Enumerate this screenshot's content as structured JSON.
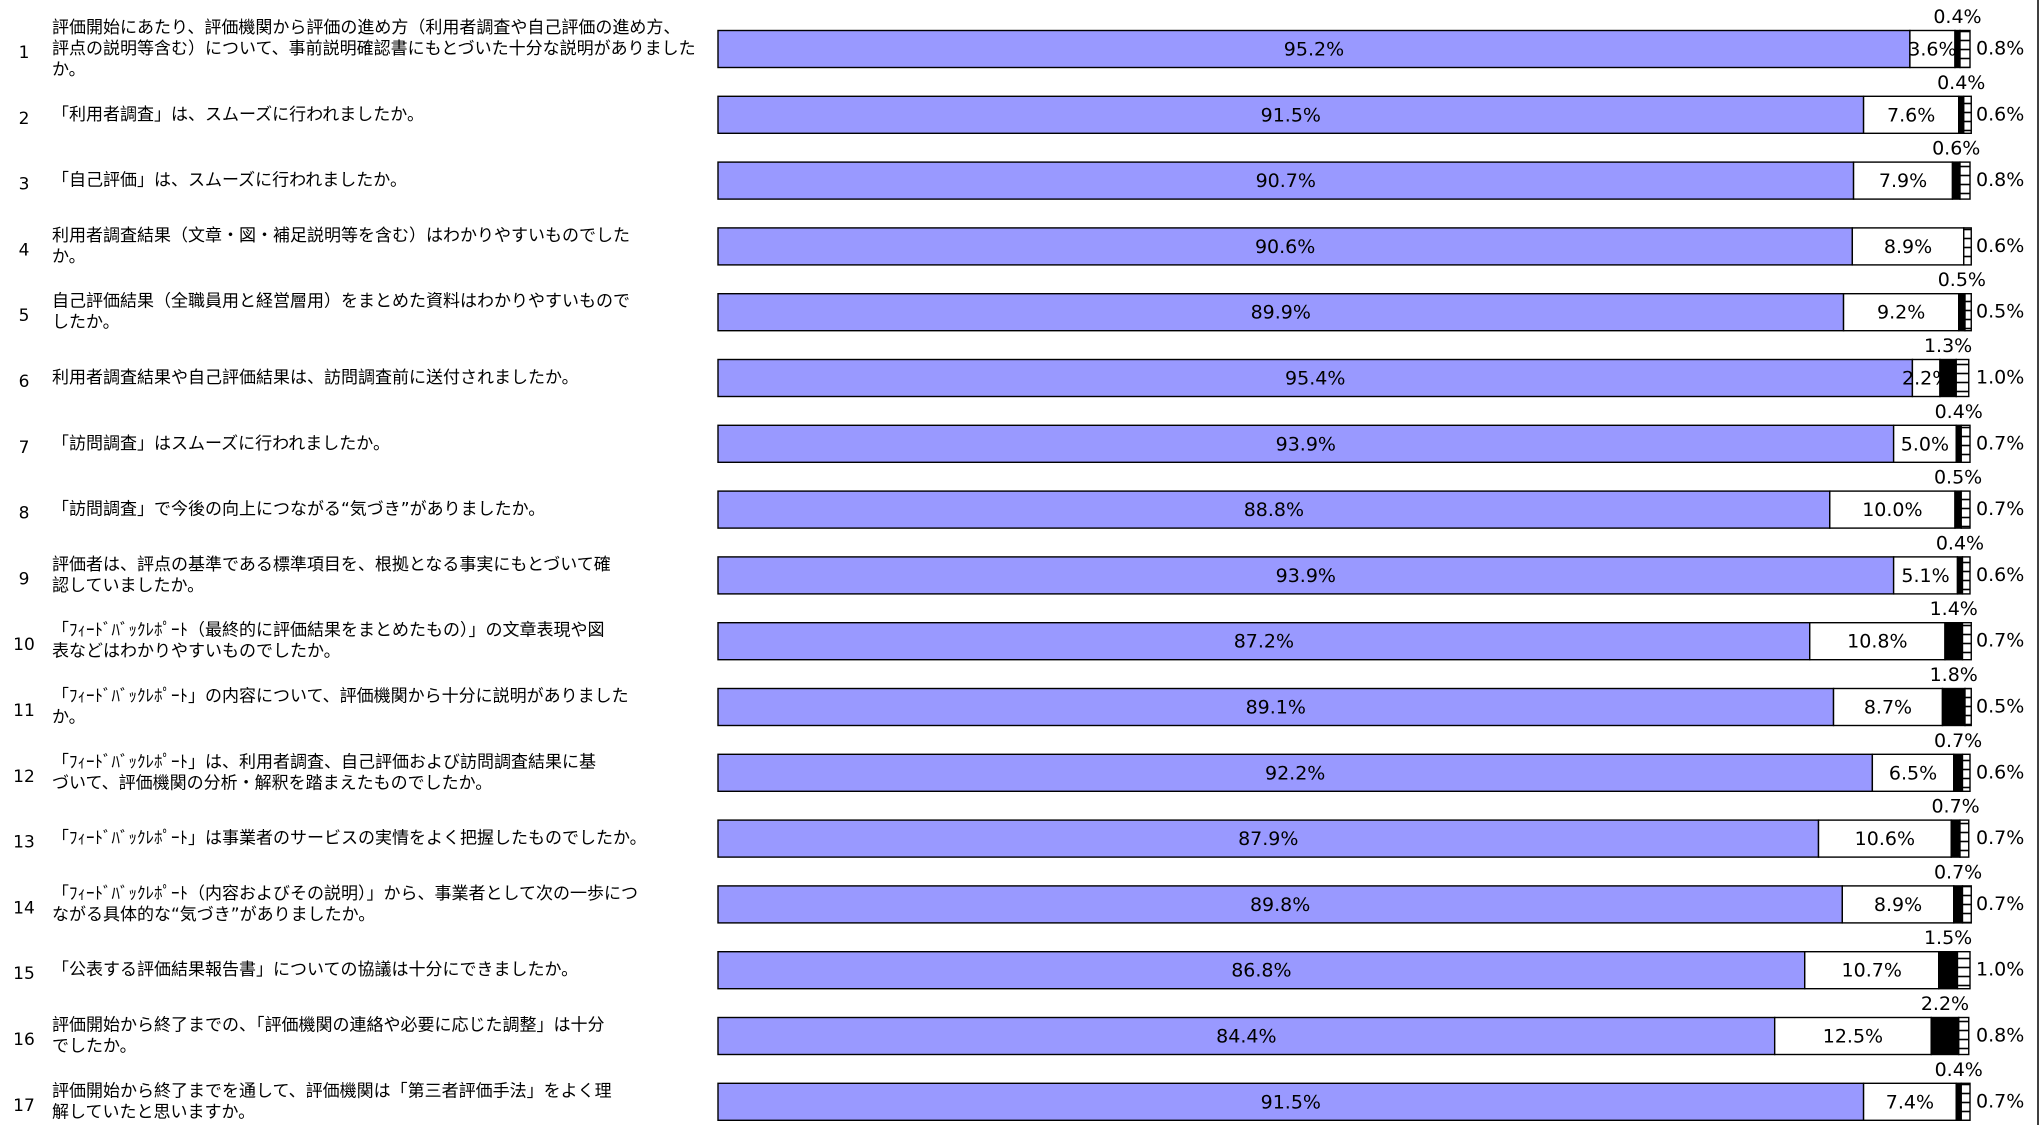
{
  "chart_data": {
    "type": "bar",
    "stacked": true,
    "orientation": "horizontal",
    "xlim": [
      0,
      100
    ],
    "colors": {
      "s1": "#9999ff",
      "s2": "#ffffff",
      "s3": "#000000",
      "s4": "#ffffff"
    },
    "series_patterns": {
      "s4": "horizontal-lines"
    },
    "rows": [
      {
        "num": "1",
        "lines": [
          "評価開始にあたり、評価機関から評価の進め方（利用者調査や自己評価の進め方、",
          "評点の説明等含む）について、事前説明確認書にもとづいた十分な説明がありました",
          "か。"
        ],
        "values": [
          95.2,
          3.6,
          0.4,
          0.8
        ],
        "labels": [
          "95.2%",
          "3.6%",
          "0.4%",
          "0.8%"
        ]
      },
      {
        "num": "2",
        "lines": [
          "「利用者調査」は、スムーズに行われましたか。"
        ],
        "values": [
          91.5,
          7.6,
          0.4,
          0.6
        ],
        "labels": [
          "91.5%",
          "7.6%",
          "0.4%",
          "0.6%"
        ]
      },
      {
        "num": "3",
        "lines": [
          "「自己評価」は、スムーズに行われましたか。"
        ],
        "values": [
          90.7,
          7.9,
          0.6,
          0.8
        ],
        "labels": [
          "90.7%",
          "7.9%",
          "0.6%",
          "0.8%"
        ]
      },
      {
        "num": "4",
        "lines": [
          "利用者調査結果（文章・図・補足説明等を含む）はわかりやすいものでした",
          "か。"
        ],
        "values": [
          90.6,
          8.9,
          0.0,
          0.6
        ],
        "labels": [
          "90.6%",
          "8.9%",
          "",
          "0.6%"
        ]
      },
      {
        "num": "5",
        "lines": [
          "自己評価結果（全職員用と経営層用）をまとめた資料はわかりやすいもので",
          "したか。"
        ],
        "values": [
          89.9,
          9.2,
          0.5,
          0.5
        ],
        "labels": [
          "89.9%",
          "9.2%",
          "0.5%",
          "0.5%"
        ]
      },
      {
        "num": "6",
        "lines": [
          "利用者調査結果や自己評価結果は、訪問調査前に送付されましたか。"
        ],
        "values": [
          95.4,
          2.2,
          1.3,
          1.0
        ],
        "labels": [
          "95.4%",
          "2.2%",
          "1.3%",
          "1.0%"
        ]
      },
      {
        "num": "7",
        "lines": [
          "「訪問調査」はスムーズに行われましたか。"
        ],
        "values": [
          93.9,
          5.0,
          0.4,
          0.7
        ],
        "labels": [
          "93.9%",
          "5.0%",
          "0.4%",
          "0.7%"
        ]
      },
      {
        "num": "8",
        "lines": [
          "「訪問調査」で今後の向上につながる“気づき”がありましたか。"
        ],
        "values": [
          88.8,
          10.0,
          0.5,
          0.7
        ],
        "labels": [
          "88.8%",
          "10.0%",
          "0.5%",
          "0.7%"
        ]
      },
      {
        "num": "9",
        "lines": [
          "評価者は、評点の基準である標準項目を、根拠となる事実にもとづいて確",
          "認していましたか。"
        ],
        "values": [
          93.9,
          5.1,
          0.4,
          0.6
        ],
        "labels": [
          "93.9%",
          "5.1%",
          "0.4%",
          "0.6%"
        ]
      },
      {
        "num": "10",
        "lines": [
          "「ﾌｨｰﾄﾞﾊﾞｯｸﾚﾎﾟｰﾄ（最終的に評価結果をまとめたもの）」の文章表現や図",
          "表などはわかりやすいものでしたか。"
        ],
        "values": [
          87.2,
          10.8,
          1.4,
          0.7
        ],
        "labels": [
          "87.2%",
          "10.8%",
          "1.4%",
          "0.7%"
        ]
      },
      {
        "num": "11",
        "lines": [
          "「ﾌｨｰﾄﾞﾊﾞｯｸﾚﾎﾟｰﾄ」の内容について、評価機関から十分に説明がありました",
          "か。"
        ],
        "values": [
          89.1,
          8.7,
          1.8,
          0.5
        ],
        "labels": [
          "89.1%",
          "8.7%",
          "1.8%",
          "0.5%"
        ]
      },
      {
        "num": "12",
        "lines": [
          "「ﾌｨｰﾄﾞﾊﾞｯｸﾚﾎﾟｰﾄ」は、利用者調査、自己評価および訪問調査結果に基",
          "づいて、評価機関の分析・解釈を踏まえたものでしたか。"
        ],
        "values": [
          92.2,
          6.5,
          0.7,
          0.6
        ],
        "labels": [
          "92.2%",
          "6.5%",
          "0.7%",
          "0.6%"
        ]
      },
      {
        "num": "13",
        "lines": [
          "「ﾌｨｰﾄﾞﾊﾞｯｸﾚﾎﾟｰﾄ」は事業者のサービスの実情をよく把握したものでしたか。"
        ],
        "values": [
          87.9,
          10.6,
          0.7,
          0.7
        ],
        "labels": [
          "87.9%",
          "10.6%",
          "0.7%",
          "0.7%"
        ]
      },
      {
        "num": "14",
        "lines": [
          "「ﾌｨｰﾄﾞﾊﾞｯｸﾚﾎﾟｰﾄ（内容およびその説明）」から、事業者として次の一歩につ",
          "ながる具体的な“気づき”がありましたか。"
        ],
        "values": [
          89.8,
          8.9,
          0.7,
          0.7
        ],
        "labels": [
          "89.8%",
          "8.9%",
          "0.7%",
          "0.7%"
        ]
      },
      {
        "num": "15",
        "lines": [
          "「公表する評価結果報告書」についての協議は十分にできましたか。"
        ],
        "values": [
          86.8,
          10.7,
          1.5,
          1.0
        ],
        "labels": [
          "86.8%",
          "10.7%",
          "1.5%",
          "1.0%"
        ]
      },
      {
        "num": "16",
        "lines": [
          "評価開始から終了までの、「評価機関の連絡や必要に応じた調整」は十分",
          "でしたか。"
        ],
        "values": [
          84.4,
          12.5,
          2.2,
          0.8
        ],
        "labels": [
          "84.4%",
          "12.5%",
          "2.2%",
          "0.8%"
        ]
      },
      {
        "num": "17",
        "lines": [
          "評価開始から終了までを通して、評価機関は「第三者評価手法」をよく理",
          "解していたと思いますか。"
        ],
        "values": [
          91.5,
          7.4,
          0.4,
          0.7
        ],
        "labels": [
          "91.5%",
          "7.4%",
          "0.4%",
          "0.7%"
        ]
      }
    ]
  }
}
